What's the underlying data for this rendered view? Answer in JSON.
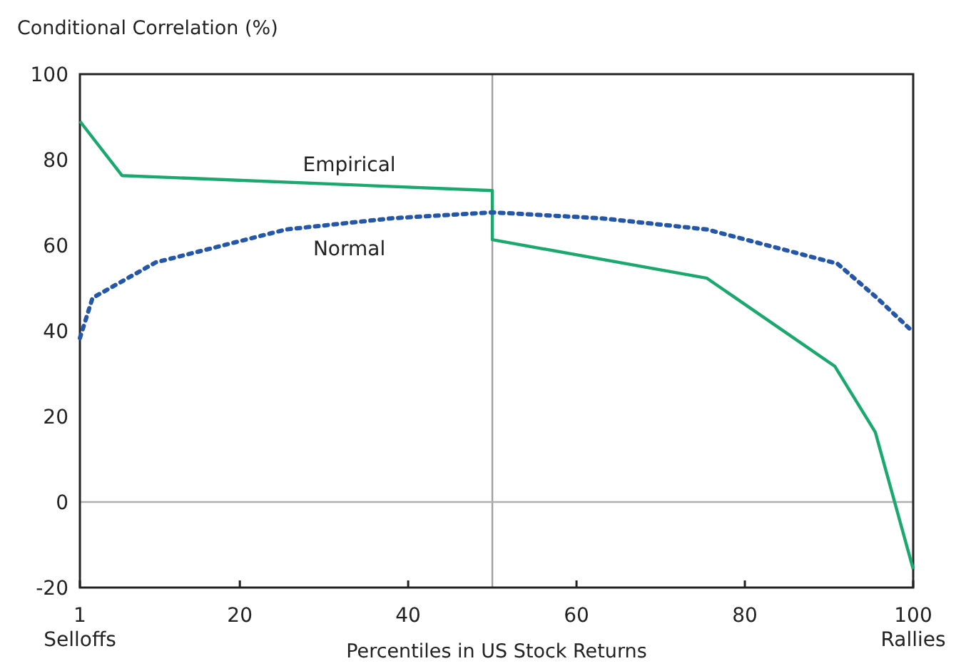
{
  "chart_data": {
    "type": "line",
    "ylabel": "Conditional Correlation (%)",
    "xlabel": "Percentiles in US Stock Returns",
    "xlim": [
      1,
      100
    ],
    "ylim": [
      -20,
      100
    ],
    "xticks": [
      {
        "value": 1,
        "label": "1\nSelloffs"
      },
      20,
      40,
      60,
      80,
      {
        "value": 100,
        "label": "100\nRallies"
      }
    ],
    "yticks": [
      -20,
      0,
      20,
      40,
      60,
      80,
      100
    ],
    "grid": false,
    "legend": false,
    "series": [
      {
        "name": "Empirical",
        "color": "#1aa86e",
        "line_style": "solid",
        "x": [
          1,
          6,
          50,
          50,
          75.5,
          90.7,
          95.5,
          100
        ],
        "values": [
          89,
          76.3,
          72.8,
          61.3,
          52.3,
          31.7,
          16.3,
          -15.7
        ]
      },
      {
        "name": "Normal",
        "color": "#2557a8",
        "line_style": "dotted",
        "x": [
          1,
          2.5,
          10,
          25.5,
          38,
          50,
          63,
          75.5,
          91,
          95.7,
          100
        ],
        "values": [
          38.3,
          47.7,
          56,
          63.7,
          66.3,
          67.7,
          66.3,
          63.7,
          55.7,
          47.7,
          39.7
        ]
      }
    ],
    "ref_lines": [
      {
        "axis": "x",
        "value": 50,
        "color": "#a0a0a0"
      },
      {
        "axis": "y",
        "value": 0,
        "color": "#b0b0b0"
      }
    ]
  }
}
